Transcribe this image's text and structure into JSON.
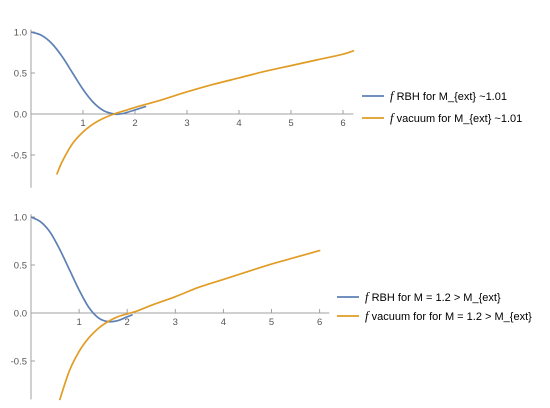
{
  "chart_data": [
    {
      "type": "line",
      "xlim": [
        0,
        6.2
      ],
      "ylim": [
        -0.9,
        1.03
      ],
      "x_ticks": [
        1,
        2,
        3,
        4,
        5,
        6
      ],
      "y_ticks": [
        -0.5,
        0.0,
        0.5,
        1.0
      ],
      "x_tick_labels": [
        "1",
        "2",
        "3",
        "4",
        "5",
        "6"
      ],
      "y_tick_labels": [
        "-0.5",
        "0.0",
        "0.5",
        "1.0"
      ],
      "legend_position": "right",
      "series": [
        {
          "name": "RBH for M_{ext} ~1.01",
          "legend_prefix": "f",
          "color": "#5e81b5",
          "x": [
            0,
            0.2,
            0.4,
            0.6,
            0.8,
            1.0,
            1.2,
            1.4,
            1.6,
            1.7,
            1.8,
            2.0,
            2.2
          ],
          "y": [
            1.0,
            0.96,
            0.86,
            0.7,
            0.5,
            0.3,
            0.14,
            0.04,
            0.0,
            0.0,
            0.01,
            0.05,
            0.09
          ]
        },
        {
          "name": "vacuum for M_{ext} ~1.01",
          "legend_prefix": "f",
          "color": "#e19c24",
          "x": [
            0.5,
            0.6,
            0.8,
            1.0,
            1.2,
            1.4,
            1.6,
            1.8,
            2.0,
            2.5,
            3.0,
            3.5,
            4.0,
            4.5,
            5.0,
            5.5,
            6.0,
            6.2
          ],
          "y": [
            -0.73,
            -0.58,
            -0.36,
            -0.22,
            -0.12,
            -0.05,
            0.0,
            0.04,
            0.08,
            0.17,
            0.27,
            0.36,
            0.44,
            0.52,
            0.59,
            0.66,
            0.73,
            0.77
          ]
        }
      ]
    },
    {
      "type": "line",
      "xlim": [
        0,
        6.2
      ],
      "ylim": [
        -0.9,
        1.03
      ],
      "x_ticks": [
        1,
        2,
        3,
        4,
        5,
        6
      ],
      "y_ticks": [
        -0.5,
        0.0,
        0.5,
        1.0
      ],
      "x_tick_labels": [
        "1",
        "2",
        "3",
        "4",
        "5",
        "6"
      ],
      "y_tick_labels": [
        "-0.5",
        "0.0",
        "0.5",
        "1.0"
      ],
      "legend_position": "right",
      "series": [
        {
          "name": "RBH for M = 1.2 > M_{ext}",
          "legend_prefix": "f",
          "color": "#5e81b5",
          "x": [
            0,
            0.2,
            0.4,
            0.6,
            0.8,
            1.0,
            1.2,
            1.4,
            1.6,
            1.8,
            2.0,
            2.1
          ],
          "y": [
            1.0,
            0.95,
            0.84,
            0.66,
            0.45,
            0.24,
            0.06,
            -0.05,
            -0.09,
            -0.08,
            -0.04,
            -0.02
          ]
        },
        {
          "name": "vacuum for for M = 1.2 > M_{ext}",
          "legend_prefix": "f",
          "color": "#e19c24",
          "x": [
            0.6,
            0.8,
            1.0,
            1.2,
            1.4,
            1.6,
            1.8,
            2.0,
            2.2,
            2.5,
            3.0,
            3.5,
            4.0,
            4.5,
            5.0,
            5.5,
            6.0
          ],
          "y": [
            -0.9,
            -0.6,
            -0.4,
            -0.26,
            -0.16,
            -0.09,
            -0.04,
            -0.01,
            0.02,
            0.08,
            0.17,
            0.27,
            0.35,
            0.43,
            0.51,
            0.58,
            0.65
          ]
        }
      ]
    }
  ]
}
